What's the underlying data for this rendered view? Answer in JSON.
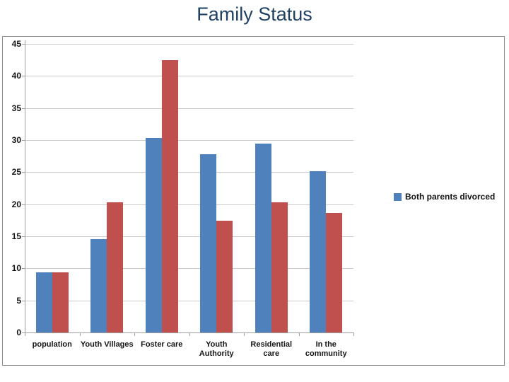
{
  "slide": {
    "title": "Family Status"
  },
  "legend": {
    "items": [
      {
        "label": "Both parents divorced",
        "swatch_color": "#4F81BD"
      }
    ]
  },
  "colors": {
    "series_blue": "#4F81BD",
    "series_red": "#C0504D",
    "title_text": "#1F4264",
    "axis_text": "#141414",
    "gridline": "#CACACA",
    "axis_line": "#9E9E9E",
    "chart_border": "#8E8E8E"
  },
  "chart_data": {
    "type": "bar",
    "title": "Family Status",
    "categories": [
      "population",
      "Youth Villages",
      "Foster care",
      "Youth\nAuthority",
      "Residential\ncare",
      "In the\ncommunity"
    ],
    "series": [
      {
        "name": "Both parents divorced",
        "color": "#4F81BD",
        "values": [
          9.4,
          14.6,
          30.3,
          27.8,
          29.5,
          25.1
        ]
      },
      {
        "name": "",
        "color": "#C0504D",
        "values": [
          9.4,
          20.3,
          42.5,
          17.4,
          20.3,
          18.6
        ]
      }
    ],
    "ylim": [
      0,
      45
    ],
    "yticks": [
      0,
      5,
      10,
      15,
      20,
      25,
      30,
      35,
      40,
      45
    ],
    "grid": true,
    "legend_position": "right",
    "legend_visible_entries": [
      "Both parents divorced"
    ]
  }
}
